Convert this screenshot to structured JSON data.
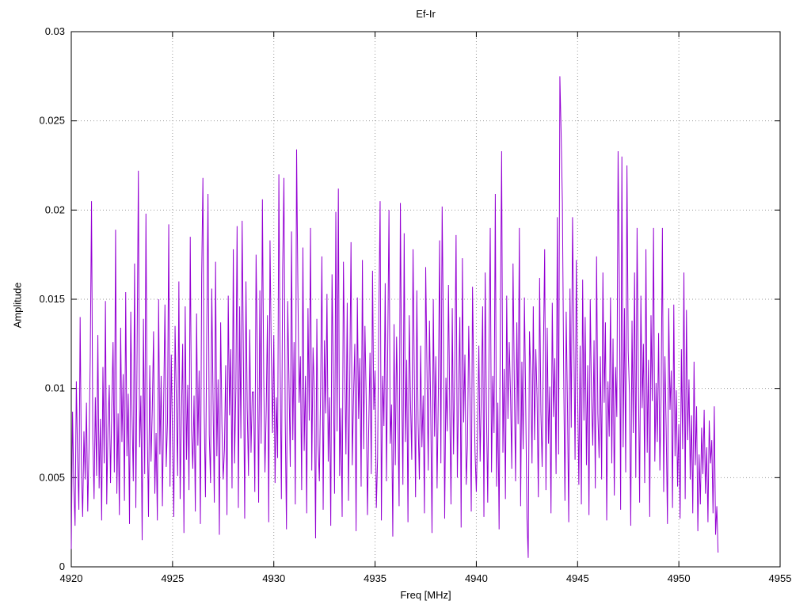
{
  "chart_data": {
    "type": "line",
    "title": "Ef-Ir",
    "xlabel": "Freq [MHz]",
    "ylabel": "Amplitude",
    "xlim": [
      4920,
      4955
    ],
    "ylim": [
      0,
      0.03
    ],
    "xticks": [
      4920,
      4925,
      4930,
      4935,
      4940,
      4945,
      4950,
      4955
    ],
    "ytick_values": [
      0,
      0.005,
      0.01,
      0.015,
      0.02,
      0.025,
      0.03
    ],
    "ytick_labels": [
      "0",
      "0.005",
      "0.01",
      "0.015",
      "0.02",
      "0.025",
      "0.03"
    ],
    "grid": true,
    "legend": "none",
    "background_color": "#ffffff",
    "line_color": "#9400d3",
    "grid_color": "#9a9a9a",
    "x_start": 4920.0,
    "x_step": 0.0625,
    "y_scale": 0.0001,
    "values": [
      10,
      87,
      45,
      23,
      104,
      60,
      32,
      140,
      55,
      28,
      76,
      49,
      92,
      31,
      66,
      118,
      205,
      72,
      38,
      95,
      51,
      130,
      44,
      83,
      26,
      112,
      58,
      149,
      35,
      78,
      102,
      47,
      90,
      126,
      53,
      189,
      41,
      86,
      29,
      134,
      70,
      108,
      37,
      154,
      62,
      97,
      24,
      143,
      85,
      48,
      170,
      33,
      121,
      222,
      67,
      96,
      15,
      139,
      52,
      198,
      79,
      28,
      113,
      59,
      88,
      132,
      41,
      75,
      26,
      150,
      63,
      107,
      34,
      92,
      147,
      56,
      81,
      192,
      45,
      119,
      70,
      28,
      135,
      94,
      51,
      160,
      38,
      84,
      125,
      19,
      146,
      60,
      102,
      43,
      185,
      77,
      55,
      96,
      31,
      142,
      68,
      110,
      24,
      163,
      218,
      87,
      39,
      128,
      209,
      74,
      47,
      156,
      93,
      36,
      171,
      62,
      105,
      18,
      137,
      80,
      49,
      66,
      113,
      29,
      152,
      85,
      122,
      44,
      178,
      58,
      99,
      191,
      33,
      146,
      72,
      194,
      115,
      27,
      160,
      89,
      51,
      133,
      64,
      98,
      98,
      42,
      175,
      121,
      36,
      155,
      69,
      206,
      108,
      53,
      88,
      141,
      25,
      183,
      120,
      75,
      130,
      47,
      95,
      61,
      220,
      112,
      38,
      167,
      218,
      84,
      21,
      149,
      103,
      56,
      188,
      71,
      126,
      35,
      234,
      158,
      92,
      118,
      43,
      179,
      65,
      107,
      30,
      145,
      82,
      190,
      54,
      123,
      98,
      16,
      139,
      68,
      48,
      101,
      174,
      32,
      127,
      86,
      153,
      59,
      95,
      23,
      164,
      110,
      41,
      199,
      76,
      212,
      51,
      89,
      28,
      171,
      114,
      63,
      148,
      37,
      104,
      182,
      57,
      96,
      125,
      20,
      151,
      83,
      117,
      45,
      172,
      66,
      135,
      94,
      29,
      78,
      120,
      52,
      166,
      88,
      110,
      33,
      61,
      143,
      205,
      26,
      107,
      79,
      159,
      48,
      122,
      200,
      69,
      91,
      17,
      136,
      57,
      129,
      85,
      34,
      204,
      103,
      46,
      187,
      70,
      116,
      25,
      141,
      93,
      60,
      178,
      108,
      39,
      155,
      81,
      49,
      124,
      67,
      96,
      30,
      168,
      112,
      54,
      138,
      86,
      19,
      150,
      73,
      118,
      44,
      97,
      183,
      58,
      202,
      131,
      27,
      106,
      76,
      158,
      90,
      35,
      145,
      63,
      113,
      186,
      50,
      99,
      140,
      22,
      173,
      81,
      119,
      46,
      68,
      135,
      94,
      31,
      157,
      102,
      64,
      42,
      77,
      124,
      59,
      98,
      146,
      28,
      165,
      88,
      36,
      119,
      190,
      53,
      107,
      75,
      209,
      45,
      92,
      21,
      140,
      233,
      64,
      111,
      38,
      152,
      83,
      126,
      97,
      55,
      170,
      104,
      48,
      137,
      80,
      190,
      34,
      115,
      66,
      151,
      93,
      27,
      5,
      132,
      108,
      58,
      146,
      71,
      122,
      95,
      39,
      162,
      87,
      56,
      121,
      178,
      43,
      134,
      69,
      101,
      30,
      148,
      84,
      117,
      52,
      196,
      63,
      275,
      243,
      204,
      109,
      37,
      143,
      90,
      25,
      156,
      78,
      196,
      131,
      60,
      172,
      99,
      46,
      124,
      35,
      161,
      82,
      140,
      57,
      113,
      29,
      150,
      95,
      68,
      127,
      44,
      174,
      86,
      61,
      118,
      49,
      165,
      92,
      137,
      26,
      104,
      73,
      151,
      58,
      128,
      40,
      112,
      84,
      233,
      159,
      32,
      230,
      67,
      145,
      53,
      225,
      121,
      97,
      23,
      138,
      75,
      165,
      50,
      190,
      108,
      36,
      152,
      89,
      125,
      47,
      178,
      64,
      116,
      28,
      141,
      93,
      190,
      59,
      103,
      70,
      131,
      54,
      96,
      190,
      42,
      118,
      77,
      24,
      145,
      88,
      110,
      33,
      147,
      62,
      99,
      45,
      80,
      27,
      122,
      66,
      165,
      38,
      144,
      71,
      105,
      49,
      85,
      30,
      115,
      57,
      90,
      20,
      63,
      35,
      78,
      52,
      88,
      41,
      67,
      25,
      82,
      58,
      71,
      30,
      90,
      18,
      34,
      8
    ]
  }
}
